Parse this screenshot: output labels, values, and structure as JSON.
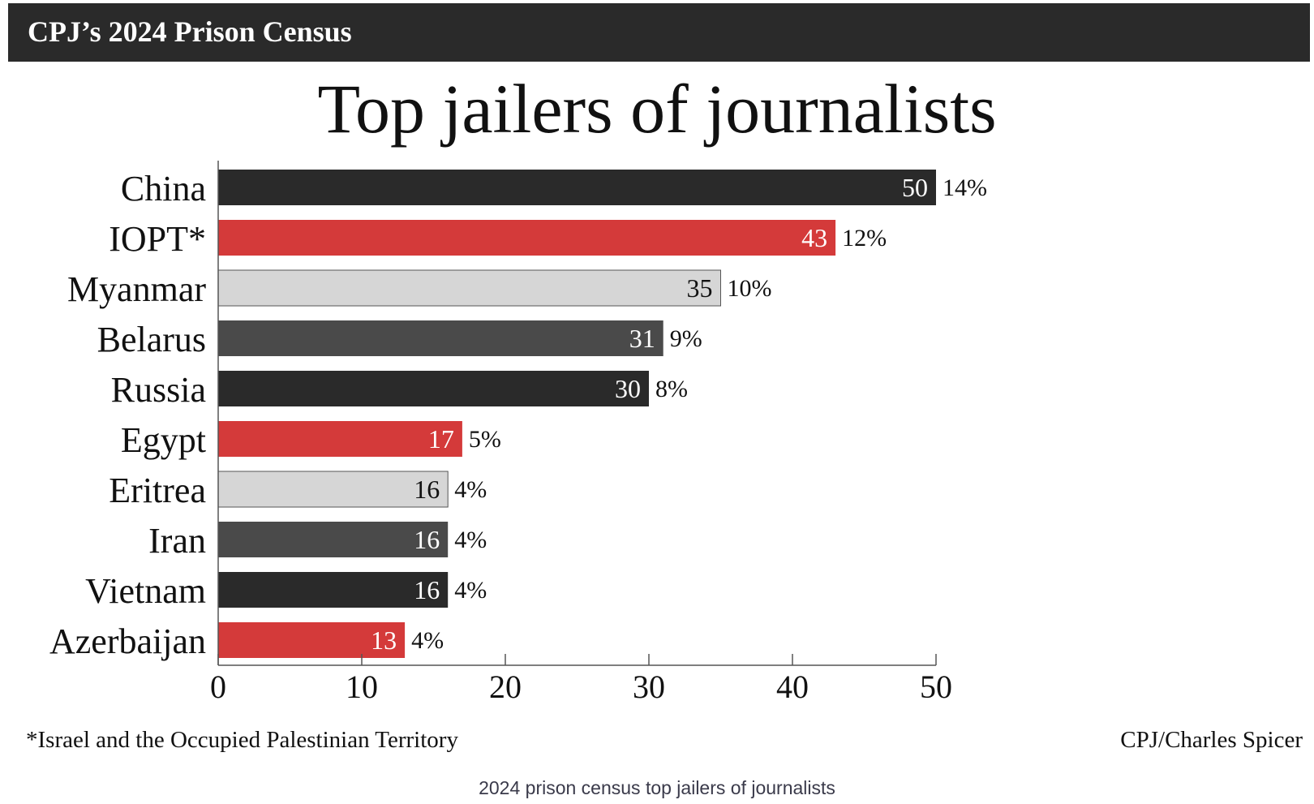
{
  "header": {
    "banner": "CPJ’s 2024 Prison Census"
  },
  "colors": {
    "banner_bg": "#2a2a2a",
    "black": "#2a2a2a",
    "red": "#d43a3a",
    "light_gray": "#d6d6d6",
    "dark_gray": "#4a4a4a"
  },
  "chart_data": {
    "type": "bar",
    "orientation": "horizontal",
    "title": "Top jailers of journalists",
    "categories": [
      "China",
      "IOPT*",
      "Myanmar",
      "Belarus",
      "Russia",
      "Egypt",
      "Eritrea",
      "Iran",
      "Vietnam",
      "Azerbaijan"
    ],
    "values": [
      50,
      43,
      35,
      31,
      30,
      17,
      16,
      16,
      16,
      13
    ],
    "percent_labels": [
      "14%",
      "12%",
      "10%",
      "9%",
      "8%",
      "5%",
      "4%",
      "4%",
      "4%",
      "4%"
    ],
    "bar_colors": [
      "black",
      "red",
      "light_gray",
      "dark_gray",
      "black",
      "red",
      "light_gray",
      "dark_gray",
      "black",
      "red"
    ],
    "xlim": [
      0,
      50
    ],
    "xticks": [
      0,
      10,
      20,
      30,
      40,
      50
    ],
    "xlabel": "",
    "ylabel": "",
    "grid": false,
    "legend": "none"
  },
  "footnote": "*Israel and the Occupied Palestinian Territory",
  "credit": "CPJ/Charles Spicer",
  "caption": "2024 prison census top jailers of journalists"
}
